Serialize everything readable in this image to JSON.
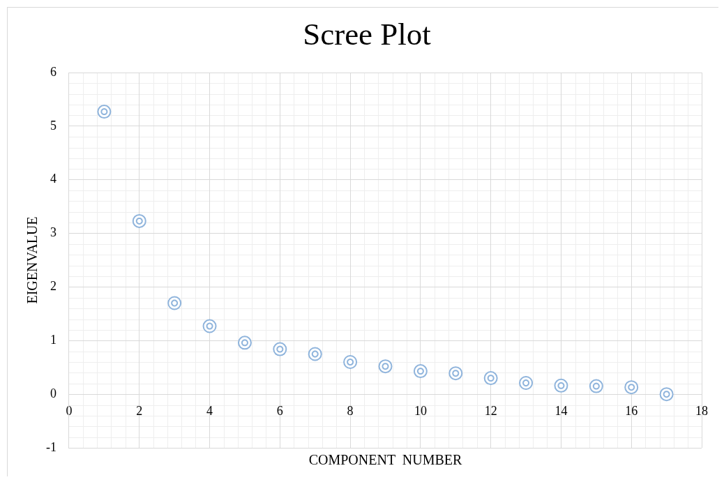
{
  "chart_data": {
    "type": "scatter",
    "title": "Scree Plot",
    "xlabel": "COMPONENT  NUMBER",
    "ylabel": "EIGENVALUE",
    "x": [
      1,
      2,
      3,
      4,
      5,
      6,
      7,
      8,
      9,
      10,
      11,
      12,
      13,
      14,
      15,
      16,
      17
    ],
    "values": [
      5.27,
      3.23,
      1.7,
      1.27,
      0.96,
      0.84,
      0.75,
      0.6,
      0.52,
      0.43,
      0.39,
      0.3,
      0.21,
      0.16,
      0.15,
      0.13,
      0
    ],
    "color": "#8fb4dc",
    "marker": "circle",
    "xlim": [
      0,
      18
    ],
    "xticks": [
      0,
      2,
      4,
      6,
      8,
      10,
      12,
      14,
      16,
      18
    ],
    "ylim": [
      -1,
      6
    ],
    "yticks": [
      -1,
      0,
      1,
      2,
      3,
      4,
      5,
      6
    ],
    "grid": true
  }
}
